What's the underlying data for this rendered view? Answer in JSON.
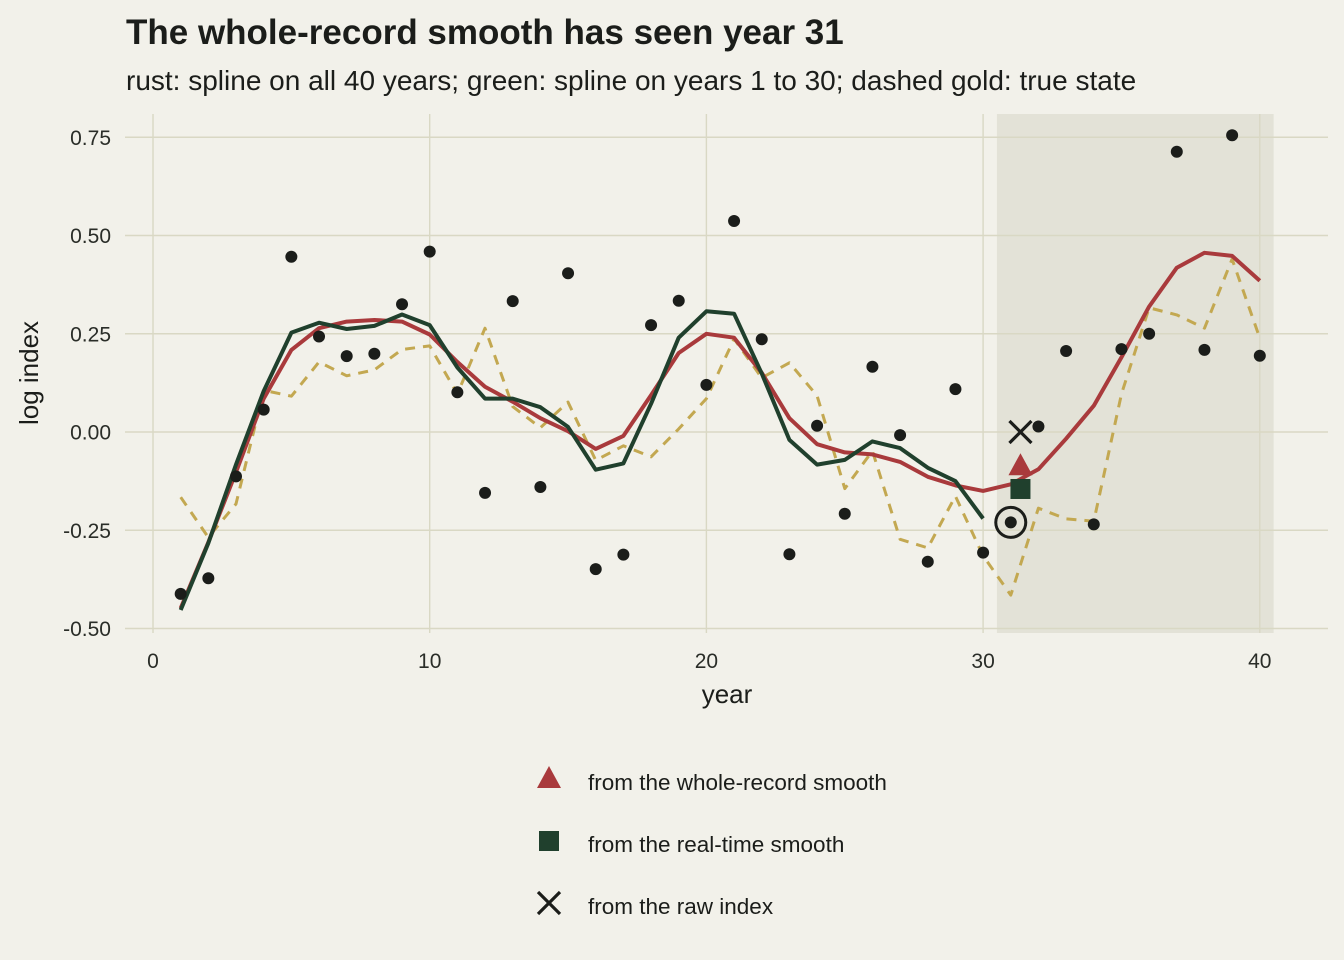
{
  "title": "The whole-record smooth has seen year 31",
  "subtitle": "rust: spline on all 40 years; green: spline on years 1 to 30; dashed gold: true state",
  "chart_data": {
    "type": "line",
    "xlabel": "year",
    "ylabel": "log index",
    "xlim": [
      -0.5,
      42.5
    ],
    "ylim": [
      -0.5,
      0.8
    ],
    "x_ticks": [
      "0",
      "10",
      "20",
      "30",
      "40"
    ],
    "x_tick_values": [
      0,
      10,
      20,
      30,
      40
    ],
    "y_ticks": [
      "-0.50",
      "-0.25",
      "0.00",
      "0.25",
      "0.50",
      "0.75"
    ],
    "y_tick_values": [
      -0.5,
      -0.25,
      0.0,
      0.25,
      0.5,
      0.75
    ],
    "grid": true,
    "shaded_region": {
      "x": [
        30.5,
        40.5
      ],
      "color": "#e3e2d7"
    },
    "points": {
      "x": [
        1,
        2,
        3,
        4,
        5,
        6,
        7,
        8,
        9,
        10,
        11,
        12,
        13,
        14,
        15,
        16,
        17,
        18,
        19,
        20,
        21,
        22,
        23,
        24,
        25,
        26,
        27,
        28,
        29,
        30,
        31,
        32,
        33,
        34,
        35,
        36,
        37,
        38,
        39,
        40
      ],
      "y": [
        -0.412,
        -0.372,
        -0.113,
        0.057,
        0.446,
        0.243,
        0.193,
        0.199,
        0.325,
        0.459,
        0.101,
        -0.155,
        0.333,
        -0.14,
        0.404,
        -0.349,
        -0.312,
        0.272,
        0.334,
        0.12,
        0.537,
        0.236,
        -0.311,
        0.016,
        -0.208,
        0.166,
        -0.008,
        -0.33,
        0.109,
        -0.307,
        -0.23,
        0.014,
        0.206,
        -0.235,
        0.211,
        0.25,
        0.713,
        0.209,
        0.755,
        0.194
      ],
      "color": "#1b1d1a"
    },
    "series": [
      {
        "name": "true state",
        "color": "#c3a851",
        "dashed": true,
        "x": [
          1,
          2,
          3,
          4,
          5,
          6,
          7,
          8,
          9,
          10,
          11,
          12,
          13,
          14,
          15,
          16,
          17,
          18,
          19,
          20,
          21,
          22,
          23,
          24,
          25,
          26,
          27,
          28,
          29,
          30,
          31,
          32,
          33,
          34,
          35,
          36,
          37,
          38,
          39,
          40
        ],
        "y": [
          -0.166,
          -0.268,
          -0.183,
          0.106,
          0.091,
          0.178,
          0.143,
          0.158,
          0.21,
          0.219,
          0.097,
          0.264,
          0.065,
          0.011,
          0.076,
          -0.072,
          -0.035,
          -0.063,
          0.008,
          0.085,
          0.237,
          0.138,
          0.176,
          0.092,
          -0.144,
          -0.048,
          -0.273,
          -0.295,
          -0.163,
          -0.315,
          -0.415,
          -0.194,
          -0.221,
          -0.227,
          0.097,
          0.316,
          0.298,
          0.264,
          0.44,
          0.239
        ]
      },
      {
        "name": "spline on all 40 years",
        "color": "#a93a3c",
        "dashed": false,
        "x": [
          1,
          2,
          3,
          4,
          5,
          6,
          7,
          8,
          9,
          10,
          11,
          12,
          13,
          14,
          15,
          16,
          17,
          18,
          19,
          20,
          21,
          22,
          23,
          24,
          25,
          26,
          27,
          28,
          29,
          30,
          31,
          32,
          33,
          34,
          35,
          36,
          37,
          38,
          39,
          40
        ],
        "y": [
          -0.448,
          -0.281,
          -0.102,
          0.085,
          0.209,
          0.264,
          0.281,
          0.285,
          0.281,
          0.248,
          0.178,
          0.115,
          0.077,
          0.035,
          0.002,
          -0.043,
          -0.01,
          0.094,
          0.201,
          0.25,
          0.24,
          0.151,
          0.035,
          -0.031,
          -0.052,
          -0.057,
          -0.076,
          -0.114,
          -0.136,
          -0.15,
          -0.133,
          -0.095,
          -0.017,
          0.067,
          0.19,
          0.319,
          0.418,
          0.456,
          0.448,
          0.385
        ]
      },
      {
        "name": "spline on years 1 to 30",
        "color": "#20402d",
        "dashed": false,
        "x": [
          1,
          2,
          3,
          4,
          5,
          6,
          7,
          8,
          9,
          10,
          11,
          12,
          13,
          14,
          15,
          16,
          17,
          18,
          19,
          20,
          21,
          22,
          23,
          24,
          25,
          26,
          27,
          28,
          29,
          30
        ],
        "y": [
          -0.453,
          -0.283,
          -0.083,
          0.104,
          0.253,
          0.278,
          0.262,
          0.27,
          0.299,
          0.272,
          0.164,
          0.085,
          0.085,
          0.063,
          0.013,
          -0.096,
          -0.08,
          0.072,
          0.24,
          0.307,
          0.301,
          0.149,
          -0.02,
          -0.083,
          -0.071,
          -0.024,
          -0.041,
          -0.091,
          -0.125,
          -0.22
        ]
      }
    ],
    "estimates": [
      {
        "label": "from the whole-record smooth",
        "marker": "triangle",
        "color": "#a93a3c",
        "x": 31.35,
        "y": -0.087
      },
      {
        "label": "from the real-time smooth",
        "marker": "square",
        "color": "#20402d",
        "x": 31.35,
        "y": -0.145
      },
      {
        "label": "from the raw index",
        "marker": "cross",
        "color": "#1b1d1a",
        "x": 31.35,
        "y": 0.0
      }
    ],
    "highlight": {
      "x": 31,
      "y": -0.23,
      "marker": "circled-point"
    },
    "legend": {
      "placement": "bottom",
      "items": [
        {
          "label": "from the whole-record smooth",
          "marker": "triangle",
          "color": "#a93a3c"
        },
        {
          "label": "from the real-time smooth",
          "marker": "square",
          "color": "#20402d"
        },
        {
          "label": "from the raw index",
          "marker": "cross",
          "color": "#1b1d1a"
        }
      ]
    }
  }
}
